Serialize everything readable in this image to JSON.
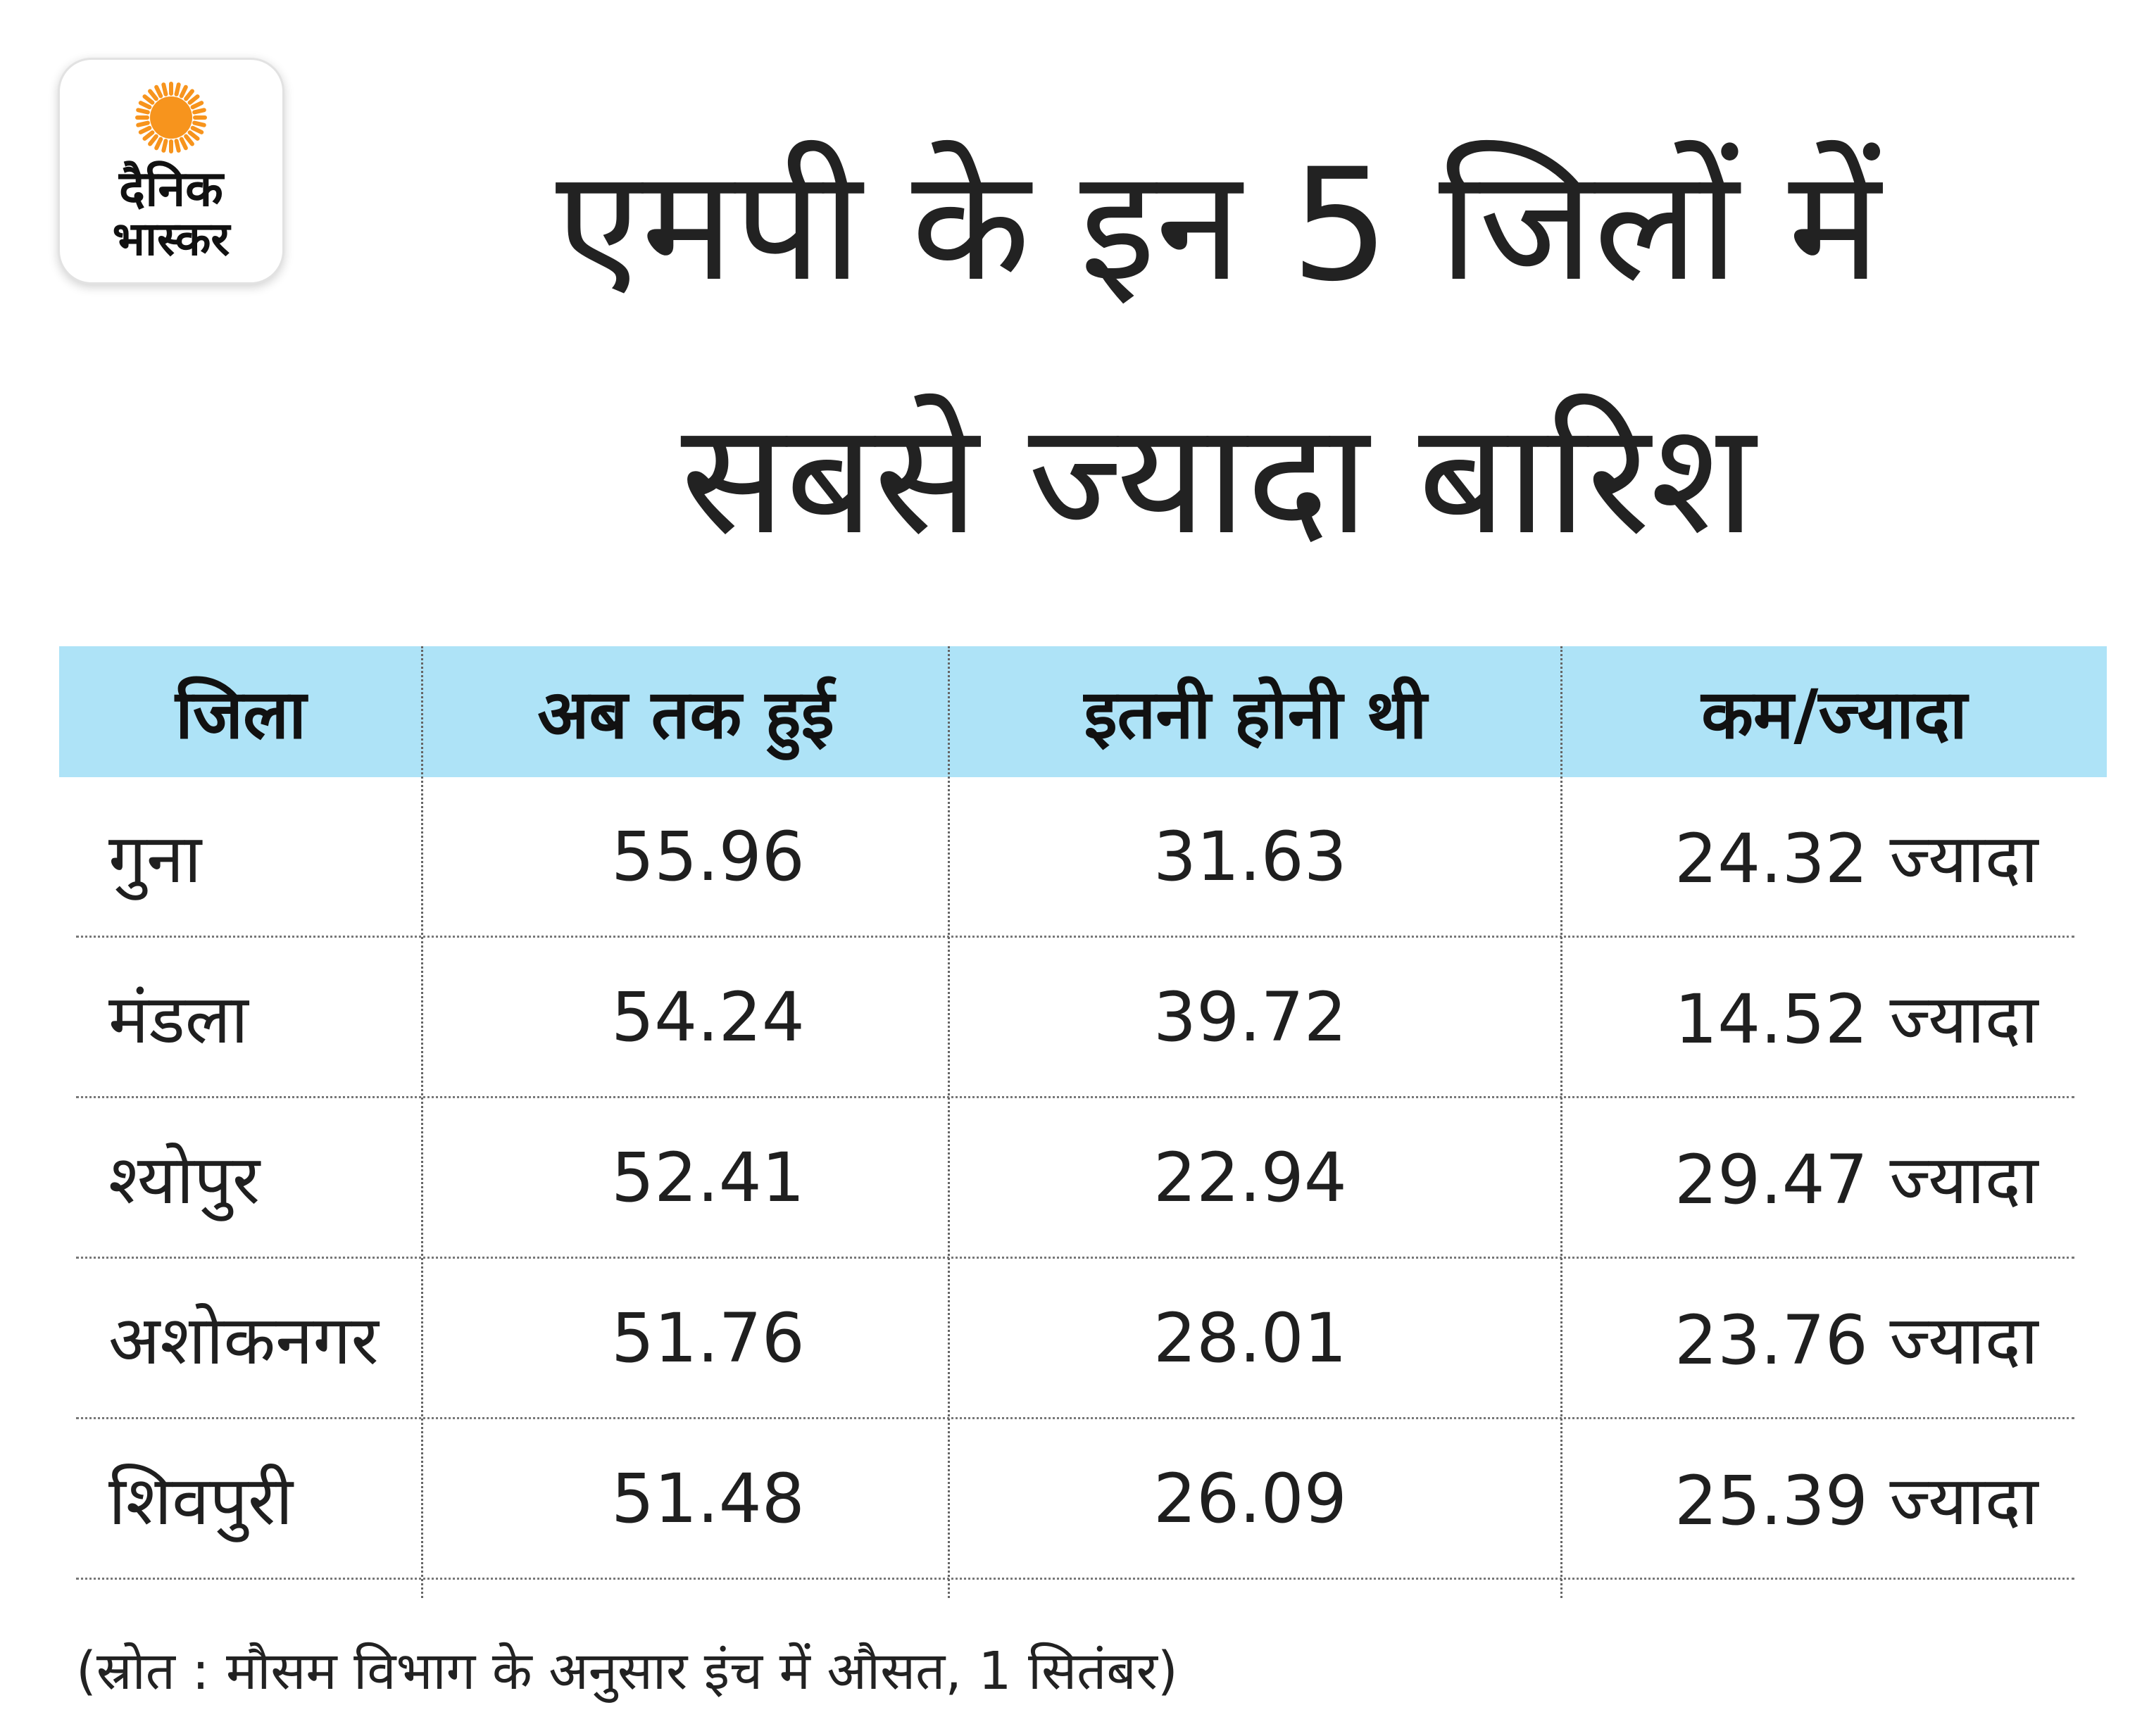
{
  "brand": {
    "logo_line1": "दैनिक",
    "logo_line2": "भास्कर",
    "sun_color": "#f7941d"
  },
  "headline": {
    "line1": "एमपी के इन 5 जिलों में",
    "line2": "सबसे ज्यादा बारिश"
  },
  "chart_data": {
    "type": "table",
    "columns": [
      "जिला",
      "अब तक हुई",
      "इतनी होनी थी",
      "कम/ज्यादा"
    ],
    "rows": [
      [
        "गुना",
        "55.96",
        "31.63",
        "24.32 ज्यादा"
      ],
      [
        "मंडला",
        "54.24",
        "39.72",
        "14.52 ज्यादा"
      ],
      [
        "श्योपुर",
        "52.41",
        "22.94",
        "29.47 ज्यादा"
      ],
      [
        "अशोकनगर",
        "51.76",
        "28.01",
        "23.76 ज्यादा"
      ],
      [
        "शिवपुरी",
        "51.48",
        "26.09",
        "25.39 ज्यादा"
      ]
    ],
    "header_color": "#aee3f7"
  },
  "source_note": "(स्रोत : मौसम विभाग के अनुसार इंच में औसत, 1 सितंबर)"
}
